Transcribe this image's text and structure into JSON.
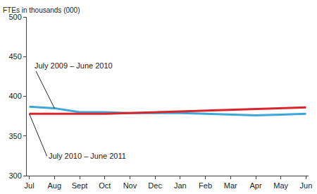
{
  "chart_data": {
    "type": "line",
    "y_label": "FTEs in thousands (000)",
    "categories": [
      "Jul",
      "Aug",
      "Sept",
      "Oct",
      "Nov",
      "Dec",
      "Jan",
      "Feb",
      "Mar",
      "Apr",
      "May",
      "Jun"
    ],
    "series": [
      {
        "name": "July 2009 – June 2010",
        "color": "#3ea6d8",
        "values": [
          387,
          385,
          380,
          380,
          379,
          379,
          379,
          378,
          377,
          376,
          377,
          378
        ]
      },
      {
        "name": "July 2010 – June 2011",
        "color": "#d9262b",
        "values": [
          378,
          378,
          378,
          378,
          379,
          380,
          381,
          382,
          383,
          384,
          385,
          386
        ]
      }
    ],
    "ylim": [
      300,
      500
    ],
    "yticks": [
      300,
      350,
      400,
      450,
      500
    ],
    "grid": false
  }
}
